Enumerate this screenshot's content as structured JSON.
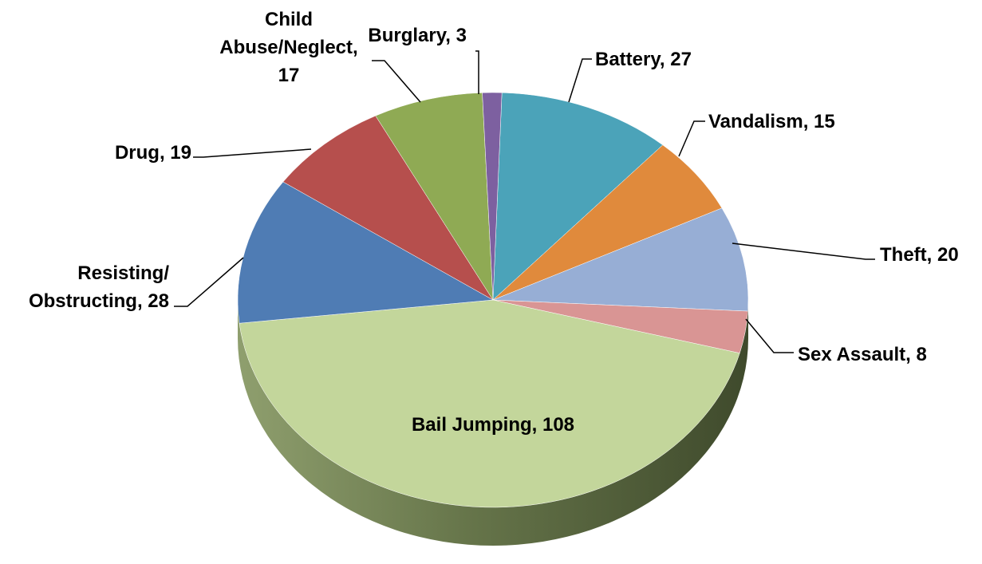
{
  "chart_data": {
    "type": "pie",
    "title": "",
    "style": "3d",
    "slices": [
      {
        "label": "Battery",
        "value": 27,
        "color": "#4BA3B9",
        "display": "Battery, 27"
      },
      {
        "label": "Vandalism",
        "value": 15,
        "color": "#E08A3C",
        "display": "Vandalism, 15"
      },
      {
        "label": "Theft",
        "value": 20,
        "color": "#97AED5",
        "display": "Theft, 20"
      },
      {
        "label": "Sex Assault",
        "value": 8,
        "color": "#D99594",
        "display": "Sex Assault, 8"
      },
      {
        "label": "Bail Jumping",
        "value": 108,
        "color": "#C3D69B",
        "display": "Bail Jumping, 108"
      },
      {
        "label": "Resisting/ Obstructing",
        "value": 28,
        "color": "#4F7CB4",
        "display": [
          "Resisting/",
          "Obstructing, 28"
        ]
      },
      {
        "label": "Drug",
        "value": 19,
        "color": "#B64F4D",
        "display": "Drug, 19"
      },
      {
        "label": "Child Abuse/Neglect",
        "value": 17,
        "color": "#8FAA54",
        "display": [
          "Child",
          "Abuse/Neglect,",
          "17"
        ]
      },
      {
        "label": "Burglary",
        "value": 3,
        "color": "#7D60A0",
        "display": "Burglary, 3"
      }
    ]
  }
}
